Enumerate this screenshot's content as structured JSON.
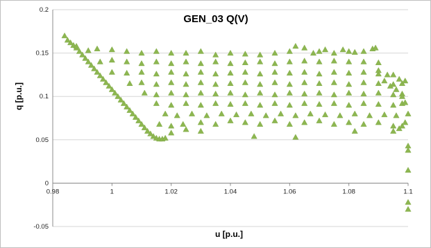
{
  "chart_data": {
    "type": "scatter",
    "title": "GEN_03 Q(V)",
    "xlabel": "u [p.u.]",
    "ylabel": "q [p.u.]",
    "xlim": [
      0.98,
      1.1
    ],
    "ylim": [
      -0.05,
      0.2
    ],
    "xticks": [
      0.98,
      1,
      1.02,
      1.04,
      1.06,
      1.08,
      1.1
    ],
    "yticks": [
      -0.05,
      0,
      0.05,
      0.1,
      0.15,
      0.2
    ],
    "xtick_labels": [
      "0.98",
      "1",
      "1.02",
      "1.04",
      "1.06",
      "1.08",
      "1.1"
    ],
    "ytick_labels": [
      "-0.05",
      "0",
      "0.05",
      "0.1",
      "0.15",
      "0.2"
    ],
    "grid": "horizontal",
    "legend": "none",
    "marker": "triangle",
    "color": "#8db651",
    "series": [
      {
        "points": [
          [
            0.984,
            0.17
          ],
          [
            0.985,
            0.165
          ],
          [
            0.986,
            0.162
          ],
          [
            0.987,
            0.159
          ],
          [
            0.988,
            0.156
          ],
          [
            0.989,
            0.152
          ],
          [
            0.99,
            0.148
          ],
          [
            0.991,
            0.144
          ],
          [
            0.992,
            0.14
          ],
          [
            0.993,
            0.136
          ],
          [
            0.994,
            0.132
          ],
          [
            0.995,
            0.128
          ],
          [
            0.996,
            0.124
          ],
          [
            0.997,
            0.12
          ],
          [
            0.998,
            0.116
          ],
          [
            0.999,
            0.112
          ],
          [
            1.0,
            0.108
          ],
          [
            1.001,
            0.104
          ],
          [
            1.002,
            0.1
          ],
          [
            1.003,
            0.096
          ],
          [
            1.004,
            0.092
          ],
          [
            1.005,
            0.088
          ],
          [
            1.006,
            0.084
          ],
          [
            1.007,
            0.08
          ],
          [
            1.008,
            0.076
          ],
          [
            1.009,
            0.072
          ],
          [
            1.01,
            0.068
          ],
          [
            1.011,
            0.064
          ],
          [
            1.012,
            0.06
          ],
          [
            1.013,
            0.057
          ],
          [
            1.014,
            0.054
          ],
          [
            1.015,
            0.052
          ],
          [
            1.016,
            0.051
          ],
          [
            1.017,
            0.051
          ],
          [
            1.018,
            0.052
          ],
          [
            0.988,
            0.158
          ],
          [
            0.992,
            0.153
          ],
          [
            0.995,
            0.155
          ],
          [
            1.0,
            0.154
          ],
          [
            1.005,
            0.152
          ],
          [
            1.01,
            0.15
          ],
          [
            1.015,
            0.152
          ],
          [
            1.02,
            0.15
          ],
          [
            1.025,
            0.15
          ],
          [
            1.03,
            0.152
          ],
          [
            1.035,
            0.148
          ],
          [
            1.04,
            0.15
          ],
          [
            1.045,
            0.149
          ],
          [
            1.05,
            0.148
          ],
          [
            1.055,
            0.15
          ],
          [
            1.06,
            0.152
          ],
          [
            1.062,
            0.158
          ],
          [
            1.065,
            0.156
          ],
          [
            1.068,
            0.15
          ],
          [
            1.07,
            0.152
          ],
          [
            1.072,
            0.154
          ],
          [
            1.075,
            0.15
          ],
          [
            1.078,
            0.154
          ],
          [
            1.08,
            0.152
          ],
          [
            1.082,
            0.151
          ],
          [
            1.085,
            0.152
          ],
          [
            1.088,
            0.155
          ],
          [
            1.089,
            0.156
          ],
          [
            0.996,
            0.14
          ],
          [
            1.0,
            0.142
          ],
          [
            1.005,
            0.14
          ],
          [
            1.01,
            0.138
          ],
          [
            1.015,
            0.14
          ],
          [
            1.02,
            0.138
          ],
          [
            1.025,
            0.14
          ],
          [
            1.03,
            0.138
          ],
          [
            1.035,
            0.14
          ],
          [
            1.04,
            0.138
          ],
          [
            1.045,
            0.139
          ],
          [
            1.05,
            0.14
          ],
          [
            1.055,
            0.138
          ],
          [
            1.06,
            0.14
          ],
          [
            1.065,
            0.141
          ],
          [
            1.07,
            0.14
          ],
          [
            1.075,
            0.141
          ],
          [
            1.08,
            0.14
          ],
          [
            1.085,
            0.14
          ],
          [
            1.09,
            0.139
          ],
          [
            1.0,
            0.128
          ],
          [
            1.005,
            0.127
          ],
          [
            1.01,
            0.128
          ],
          [
            1.015,
            0.126
          ],
          [
            1.02,
            0.128
          ],
          [
            1.025,
            0.126
          ],
          [
            1.03,
            0.128
          ],
          [
            1.035,
            0.126
          ],
          [
            1.04,
            0.127
          ],
          [
            1.045,
            0.128
          ],
          [
            1.05,
            0.126
          ],
          [
            1.055,
            0.128
          ],
          [
            1.06,
            0.127
          ],
          [
            1.065,
            0.128
          ],
          [
            1.07,
            0.126
          ],
          [
            1.075,
            0.128
          ],
          [
            1.08,
            0.127
          ],
          [
            1.085,
            0.128
          ],
          [
            1.09,
            0.126
          ],
          [
            1.095,
            0.125
          ],
          [
            1.006,
            0.115
          ],
          [
            1.01,
            0.116
          ],
          [
            1.015,
            0.114
          ],
          [
            1.02,
            0.116
          ],
          [
            1.025,
            0.114
          ],
          [
            1.03,
            0.116
          ],
          [
            1.035,
            0.114
          ],
          [
            1.04,
            0.115
          ],
          [
            1.045,
            0.116
          ],
          [
            1.05,
            0.114
          ],
          [
            1.055,
            0.116
          ],
          [
            1.06,
            0.114
          ],
          [
            1.065,
            0.116
          ],
          [
            1.07,
            0.115
          ],
          [
            1.075,
            0.116
          ],
          [
            1.08,
            0.114
          ],
          [
            1.085,
            0.116
          ],
          [
            1.09,
            0.115
          ],
          [
            1.095,
            0.114
          ],
          [
            1.098,
            0.115
          ],
          [
            1.011,
            0.104
          ],
          [
            1.015,
            0.102
          ],
          [
            1.02,
            0.104
          ],
          [
            1.025,
            0.102
          ],
          [
            1.03,
            0.104
          ],
          [
            1.035,
            0.103
          ],
          [
            1.04,
            0.104
          ],
          [
            1.045,
            0.102
          ],
          [
            1.05,
            0.104
          ],
          [
            1.055,
            0.102
          ],
          [
            1.06,
            0.104
          ],
          [
            1.065,
            0.103
          ],
          [
            1.07,
            0.104
          ],
          [
            1.075,
            0.102
          ],
          [
            1.08,
            0.104
          ],
          [
            1.085,
            0.103
          ],
          [
            1.09,
            0.104
          ],
          [
            1.095,
            0.102
          ],
          [
            1.098,
            0.103
          ],
          [
            1.015,
            0.092
          ],
          [
            1.02,
            0.09
          ],
          [
            1.025,
            0.092
          ],
          [
            1.03,
            0.09
          ],
          [
            1.035,
            0.092
          ],
          [
            1.04,
            0.091
          ],
          [
            1.045,
            0.092
          ],
          [
            1.05,
            0.09
          ],
          [
            1.055,
            0.092
          ],
          [
            1.06,
            0.09
          ],
          [
            1.065,
            0.092
          ],
          [
            1.07,
            0.091
          ],
          [
            1.075,
            0.092
          ],
          [
            1.08,
            0.09
          ],
          [
            1.085,
            0.092
          ],
          [
            1.09,
            0.091
          ],
          [
            1.095,
            0.09
          ],
          [
            1.098,
            0.092
          ],
          [
            1.018,
            0.08
          ],
          [
            1.022,
            0.078
          ],
          [
            1.027,
            0.08
          ],
          [
            1.032,
            0.078
          ],
          [
            1.037,
            0.08
          ],
          [
            1.042,
            0.079
          ],
          [
            1.047,
            0.08
          ],
          [
            1.052,
            0.078
          ],
          [
            1.057,
            0.08
          ],
          [
            1.062,
            0.078
          ],
          [
            1.067,
            0.08
          ],
          [
            1.072,
            0.079
          ],
          [
            1.077,
            0.078
          ],
          [
            1.082,
            0.08
          ],
          [
            1.087,
            0.078
          ],
          [
            1.092,
            0.079
          ],
          [
            1.096,
            0.078
          ],
          [
            1.016,
            0.068
          ],
          [
            1.02,
            0.066
          ],
          [
            1.024,
            0.068
          ],
          [
            1.03,
            0.07
          ],
          [
            1.035,
            0.068
          ],
          [
            1.04,
            0.072
          ],
          [
            1.045,
            0.07
          ],
          [
            1.05,
            0.068
          ],
          [
            1.055,
            0.072
          ],
          [
            1.06,
            0.068
          ],
          [
            1.065,
            0.07
          ],
          [
            1.07,
            0.072
          ],
          [
            1.075,
            0.068
          ],
          [
            1.08,
            0.07
          ],
          [
            1.085,
            0.068
          ],
          [
            1.09,
            0.07
          ],
          [
            1.095,
            0.066
          ],
          [
            1.02,
            0.058
          ],
          [
            1.025,
            0.062
          ],
          [
            1.03,
            0.06
          ],
          [
            1.048,
            0.054
          ],
          [
            1.062,
            0.053
          ],
          [
            1.082,
            0.06
          ],
          [
            1.095,
            0.06
          ],
          [
            1.097,
            0.063
          ],
          [
            1.098,
            0.066
          ],
          [
            1.099,
            0.07
          ],
          [
            1.09,
            0.13
          ],
          [
            1.092,
            0.118
          ],
          [
            1.096,
            0.108
          ],
          [
            1.098,
            0.1
          ],
          [
            1.099,
            0.093
          ],
          [
            1.093,
            0.125
          ],
          [
            1.097,
            0.12
          ],
          [
            1.099,
            0.118
          ],
          [
            1.094,
            0.112
          ],
          [
            1.1,
            0.08
          ],
          [
            1.1,
            0.043
          ],
          [
            1.1,
            0.038
          ],
          [
            1.1,
            0.015
          ],
          [
            1.1,
            -0.022
          ],
          [
            1.1,
            -0.03
          ]
        ]
      }
    ]
  }
}
